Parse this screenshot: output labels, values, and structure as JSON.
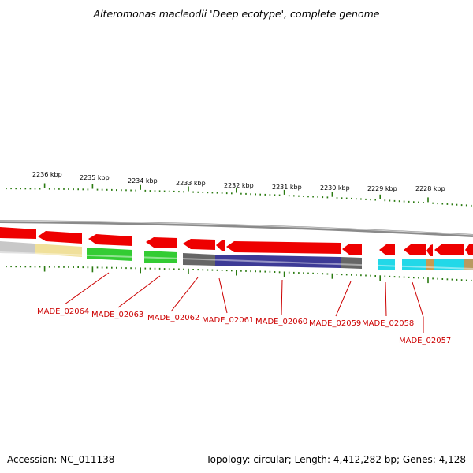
{
  "title": "Alteromonas macleodii 'Deep ecotype', complete genome",
  "footer": {
    "accession": "Accession: NC_011138",
    "summary": "Topology: circular; Length: 4,412,282 bp; Genes: 4,128"
  },
  "colors": {
    "backbone": "#888888",
    "tick": "#2a7a10",
    "gene_arrow": "#ee0000",
    "label": "#cc0000"
  },
  "scale_labels": [
    "2236 kbp",
    "2235 kbp",
    "2234 kbp",
    "2233 kbp",
    "2232 kbp",
    "2231 kbp",
    "2230 kbp",
    "2229 kbp",
    "2228 kbp"
  ],
  "cog_colors": [
    "#c8c8c8",
    "#f0e09a",
    "#33cc33",
    "#33cc33",
    "#666666",
    "#3d3a96",
    "#666666",
    "#22d8e8",
    "#22d8e8",
    "#c89a50",
    "#22d8e8",
    "#b89a60"
  ],
  "gene_labels": [
    "MADE_02064",
    "MADE_02063",
    "MADE_02062",
    "MADE_02061",
    "MADE_02060",
    "MADE_02059",
    "MADE_02058",
    "MADE_02057"
  ]
}
